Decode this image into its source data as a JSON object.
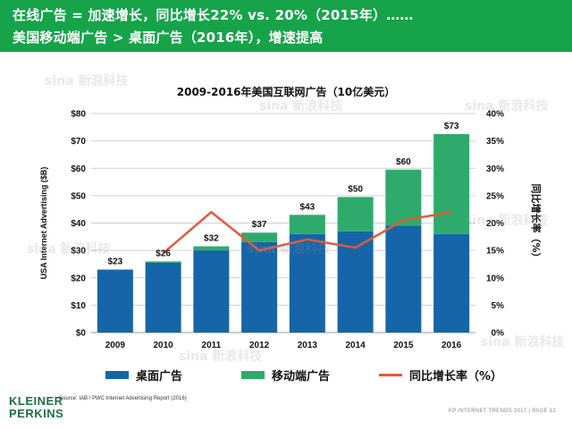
{
  "header": {
    "line1": "在线广告 = 加速增长，同比增长22% vs. 20%（2015年）……",
    "line2": "美国移动端广告 > 桌面广告（2016年），增速提高"
  },
  "chart_data": {
    "type": "bar",
    "title": "2009-2016年美国互联网广告（10亿美元）",
    "ylabel": "USA Internet Advertising ($B)",
    "y2label": "同比增长率（%）",
    "categories": [
      "2009",
      "2010",
      "2011",
      "2012",
      "2013",
      "2014",
      "2015",
      "2016"
    ],
    "ylim": [
      0,
      80
    ],
    "y2lim": [
      0,
      40
    ],
    "yticks": [
      "$0",
      "$10",
      "$20",
      "$30",
      "$40",
      "$50",
      "$60",
      "$70",
      "$80"
    ],
    "y2ticks": [
      "0%",
      "5%",
      "10%",
      "15%",
      "20%",
      "25%",
      "30%",
      "35%",
      "40%"
    ],
    "totals_labels": [
      "$23",
      "$26",
      "$32",
      "$37",
      "$43",
      "$50",
      "$60",
      "$73"
    ],
    "series": [
      {
        "name": "桌面广告",
        "type": "bar",
        "color": "#1565a8",
        "values": [
          23,
          25.5,
          30,
          33,
          36,
          37,
          39,
          36
        ]
      },
      {
        "name": "移动端广告",
        "type": "bar",
        "color": "#2eab6c",
        "values": [
          0,
          0.5,
          1.5,
          3.5,
          7,
          12.5,
          20.5,
          36.5
        ]
      },
      {
        "name": "同比增长率（%）",
        "type": "line",
        "axis": "right",
        "color": "#e25a3a",
        "values": [
          null,
          14.5,
          22,
          15,
          17,
          15.5,
          20.5,
          22
        ]
      }
    ],
    "legend_position": "bottom"
  },
  "source": "Source: IAB / PWC Internet Advertising Report (2016)",
  "logo": {
    "line1": "KLEINER",
    "line2": "PERKINS"
  },
  "footer": "KP INTERNET TRENDS 2017  |  PAGE 12",
  "watermark": "sina 新浪科技"
}
